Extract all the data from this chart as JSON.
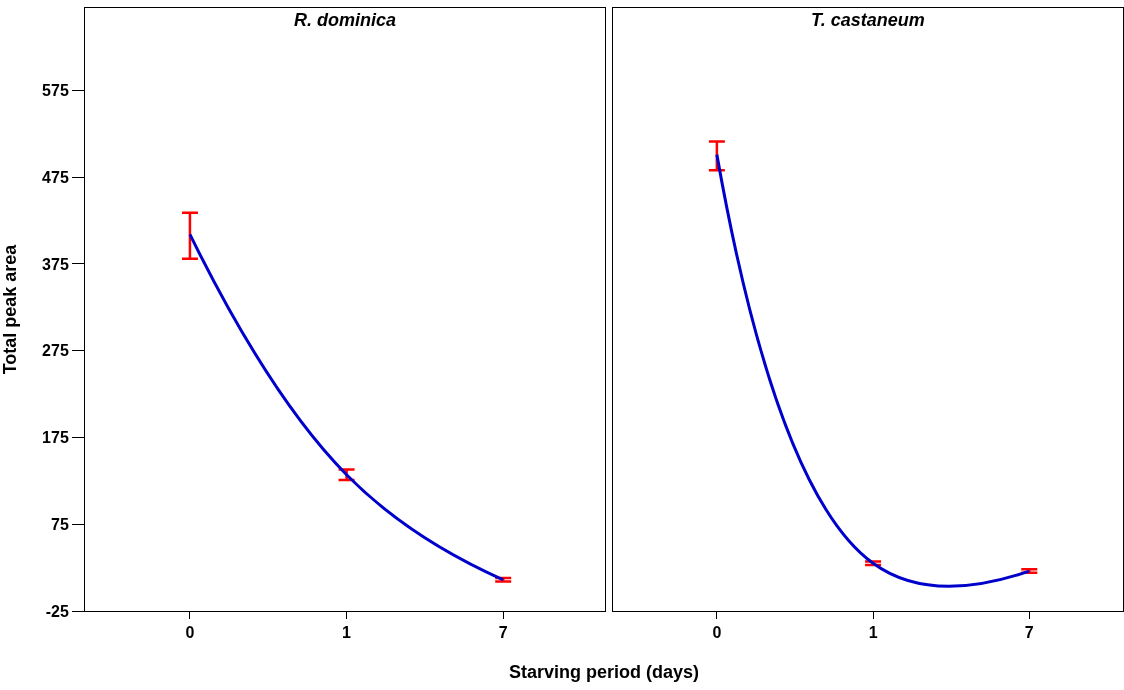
{
  "chart_data": [
    {
      "type": "line",
      "title": "R. dominica",
      "xlabel": "Starving period (days)",
      "ylabel": "Total peak area",
      "categories": [
        "0",
        "1",
        "7"
      ],
      "series": [
        {
          "color": "#0000cc",
          "values": [
            409,
            132,
            11
          ],
          "errors": [
            [
              381,
              434
            ],
            [
              126,
              138
            ],
            [
              9,
              13
            ]
          ]
        }
      ],
      "ylim": [
        -25,
        670
      ],
      "yticks": [
        -25,
        75,
        175,
        275,
        375,
        475,
        575
      ],
      "grid": false,
      "marker": "none",
      "line_style": "solid"
    },
    {
      "type": "line",
      "title": "T. castaneum",
      "categories": [
        "0",
        "1",
        "7"
      ],
      "series": [
        {
          "color": "#0000cc",
          "values": [
            501,
            30,
            21
          ],
          "errors": [
            [
              483,
              516
            ],
            [
              28,
              32
            ],
            [
              19,
              23
            ]
          ]
        }
      ],
      "ylim": [
        -25,
        670
      ],
      "yticks": [
        -25,
        75,
        175,
        275,
        375,
        475,
        575
      ],
      "tick_labels": "x",
      "grid": false,
      "marker": "none",
      "line_style": "solid"
    }
  ]
}
